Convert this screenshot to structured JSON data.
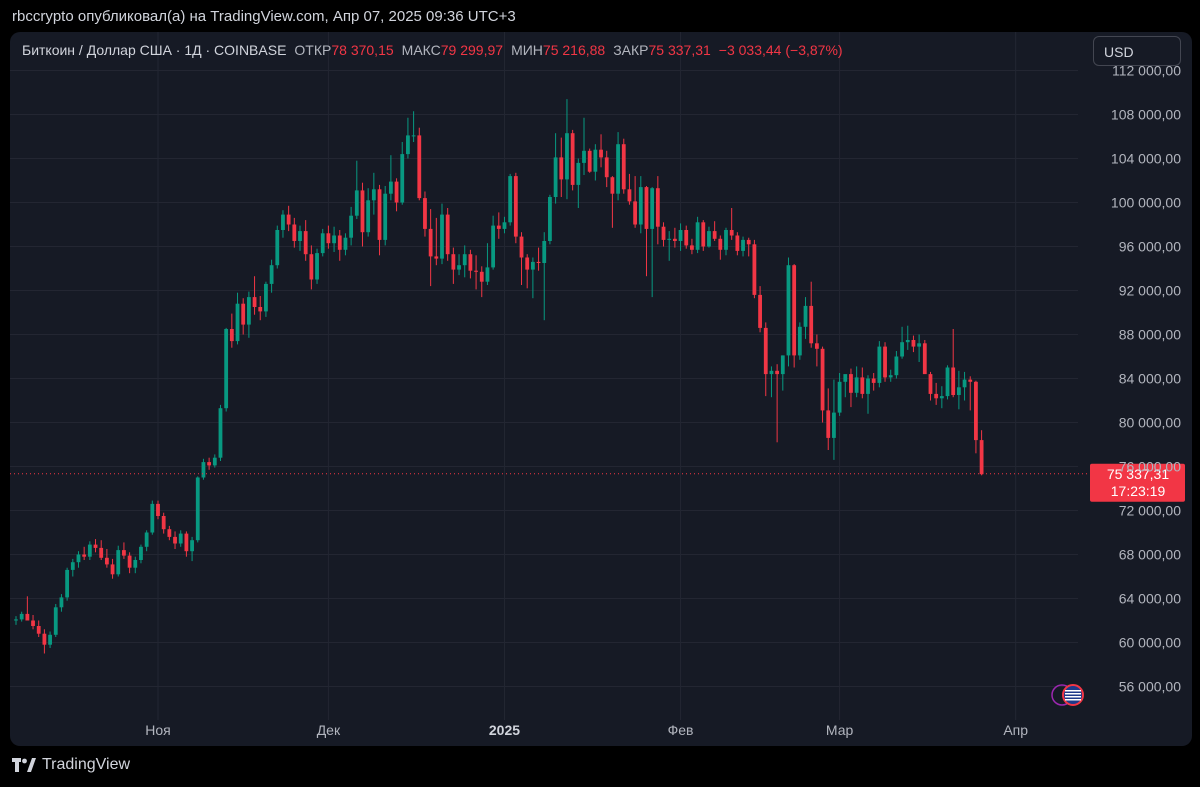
{
  "caption": "rbccrypto опубликовал(а) на TradingView.com, Апр 07, 2025 09:36 UTC+3",
  "legend": {
    "symbol": "Биткоин / Доллар США · 1Д · COINBASE",
    "open_label": "ОТКР",
    "open": "78 370,15",
    "high_label": "МАКС",
    "high": "79 299,97",
    "low_label": "МИН",
    "low": "75 216,88",
    "close_label": "ЗАКР",
    "close": "75 337,31",
    "change": "−3 033,44 (−3,87%)"
  },
  "currency_button": "USD",
  "footer_brand": "TradingView",
  "colors": {
    "up": "#089981",
    "down": "#f23645",
    "background": "#161a25",
    "grid": "#232632",
    "text": "#b2b5be"
  },
  "chart_data": {
    "type": "candlestick",
    "title": "",
    "symbol": "BTC/USD",
    "interval": "1D",
    "y_axis_ticks": [
      {
        "value": 56000,
        "label": "56 000,00"
      },
      {
        "value": 60000,
        "label": "60 000,00"
      },
      {
        "value": 64000,
        "label": "64 000,00"
      },
      {
        "value": 68000,
        "label": "68 000,00"
      },
      {
        "value": 72000,
        "label": "72 000,00"
      },
      {
        "value": 76000,
        "label": "76 000,00"
      },
      {
        "value": 80000,
        "label": "80 000,00"
      },
      {
        "value": 84000,
        "label": "84 000,00"
      },
      {
        "value": 88000,
        "label": "88 000,00"
      },
      {
        "value": 92000,
        "label": "92 000,00"
      },
      {
        "value": 96000,
        "label": "96 000,00"
      },
      {
        "value": 100000,
        "label": "100 000,00"
      },
      {
        "value": 104000,
        "label": "104 000,00"
      },
      {
        "value": 108000,
        "label": "108 000,00"
      },
      {
        "value": 112000,
        "label": "112 000,00"
      }
    ],
    "x_axis_ticks": [
      {
        "index": 25,
        "label": "Ноя",
        "bold": false
      },
      {
        "index": 55,
        "label": "Дек",
        "bold": false
      },
      {
        "index": 86,
        "label": "2025",
        "bold": true
      },
      {
        "index": 117,
        "label": "Фев",
        "bold": false
      },
      {
        "index": 145,
        "label": "Мар",
        "bold": false
      },
      {
        "index": 176,
        "label": "Апр",
        "bold": false
      }
    ],
    "last_price": {
      "value": 75337.31,
      "label": "75 337,31",
      "countdown": "17:23:19"
    },
    "ohlc": [
      [
        62000,
        62400,
        61600,
        62100
      ],
      [
        62100,
        62800,
        61900,
        62600
      ],
      [
        62600,
        64200,
        62300,
        62000
      ],
      [
        62000,
        62500,
        61200,
        61500
      ],
      [
        61500,
        62000,
        60500,
        60800
      ],
      [
        60800,
        61200,
        59000,
        59800
      ],
      [
        59800,
        61000,
        59500,
        60700
      ],
      [
        60700,
        63500,
        60500,
        63200
      ],
      [
        63200,
        64400,
        62800,
        64100
      ],
      [
        64100,
        66800,
        63800,
        66600
      ],
      [
        66600,
        67600,
        66000,
        67300
      ],
      [
        67300,
        68300,
        66800,
        68000
      ],
      [
        68000,
        68700,
        67500,
        67800
      ],
      [
        67800,
        69200,
        67500,
        68900
      ],
      [
        68900,
        69400,
        68200,
        68600
      ],
      [
        68600,
        69300,
        67500,
        67700
      ],
      [
        67700,
        68500,
        66800,
        67100
      ],
      [
        67100,
        67600,
        65800,
        66200
      ],
      [
        66200,
        68800,
        66000,
        68400
      ],
      [
        68400,
        69100,
        67600,
        67900
      ],
      [
        67900,
        68200,
        66300,
        66800
      ],
      [
        66800,
        67800,
        66300,
        67500
      ],
      [
        67500,
        68900,
        67200,
        68700
      ],
      [
        68700,
        70200,
        68300,
        70000
      ],
      [
        70000,
        72900,
        69800,
        72600
      ],
      [
        72600,
        72900,
        71200,
        71500
      ],
      [
        71500,
        71800,
        69900,
        70300
      ],
      [
        70300,
        70600,
        69300,
        69600
      ],
      [
        69600,
        70100,
        68500,
        69000
      ],
      [
        69000,
        70200,
        68700,
        69900
      ],
      [
        69900,
        70100,
        67800,
        68300
      ],
      [
        68300,
        69600,
        67400,
        69300
      ],
      [
        69300,
        75100,
        69100,
        75000
      ],
      [
        75000,
        76700,
        74800,
        76400
      ],
      [
        76400,
        76800,
        75700,
        76100
      ],
      [
        76100,
        77100,
        75900,
        76800
      ],
      [
        76800,
        81600,
        76500,
        81300
      ],
      [
        81300,
        88600,
        81000,
        88500
      ],
      [
        88500,
        89900,
        86800,
        87400
      ],
      [
        87400,
        91800,
        87100,
        90800
      ],
      [
        90800,
        91300,
        88000,
        88900
      ],
      [
        88900,
        91900,
        87700,
        91400
      ],
      [
        91400,
        93300,
        89800,
        90500
      ],
      [
        90500,
        91500,
        89300,
        90100
      ],
      [
        90100,
        92800,
        89600,
        92600
      ],
      [
        92600,
        94800,
        91800,
        94300
      ],
      [
        94300,
        97900,
        94000,
        97500
      ],
      [
        97500,
        99300,
        96800,
        98900
      ],
      [
        98900,
        99700,
        97400,
        98000
      ],
      [
        98000,
        98600,
        95900,
        96500
      ],
      [
        96500,
        97900,
        95600,
        97400
      ],
      [
        97400,
        98400,
        94700,
        95300
      ],
      [
        95300,
        96100,
        92100,
        93000
      ],
      [
        93000,
        95800,
        92600,
        95400
      ],
      [
        95400,
        97600,
        95100,
        97200
      ],
      [
        97200,
        97900,
        95800,
        96300
      ],
      [
        96300,
        97800,
        95500,
        97000
      ],
      [
        97000,
        97500,
        94700,
        95700
      ],
      [
        95700,
        97200,
        95200,
        96800
      ],
      [
        96800,
        99600,
        96100,
        98800
      ],
      [
        98800,
        103800,
        98500,
        101100
      ],
      [
        101100,
        101800,
        96000,
        97300
      ],
      [
        97300,
        101300,
        96900,
        100200
      ],
      [
        100200,
        102700,
        98900,
        101200
      ],
      [
        101200,
        101600,
        95200,
        96600
      ],
      [
        96600,
        101500,
        96100,
        100800
      ],
      [
        100800,
        104300,
        100200,
        101900
      ],
      [
        101900,
        102200,
        99200,
        100000
      ],
      [
        100000,
        105500,
        99800,
        104400
      ],
      [
        104400,
        107700,
        104000,
        106100
      ],
      [
        106100,
        108300,
        105500,
        106100
      ],
      [
        106100,
        106800,
        100200,
        100400
      ],
      [
        100400,
        101000,
        96900,
        97600
      ],
      [
        97600,
        99400,
        92400,
        95100
      ],
      [
        95100,
        98600,
        94300,
        94900
      ],
      [
        94900,
        99900,
        94400,
        98900
      ],
      [
        98900,
        99500,
        94700,
        95300
      ],
      [
        95300,
        95900,
        92600,
        93900
      ],
      [
        93900,
        95300,
        93400,
        94300
      ],
      [
        94300,
        96100,
        93200,
        95300
      ],
      [
        95300,
        95700,
        93100,
        93800
      ],
      [
        93800,
        95200,
        92100,
        93700
      ],
      [
        93700,
        94200,
        91400,
        92800
      ],
      [
        92800,
        96300,
        92500,
        94100
      ],
      [
        94100,
        98800,
        93900,
        97900
      ],
      [
        97900,
        99100,
        96700,
        97600
      ],
      [
        97600,
        98700,
        97200,
        98200
      ],
      [
        98200,
        102600,
        97900,
        102400
      ],
      [
        102400,
        102700,
        96300,
        96900
      ],
      [
        96900,
        97300,
        92500,
        95000
      ],
      [
        95000,
        95300,
        92200,
        93900
      ],
      [
        93900,
        95000,
        91300,
        94600
      ],
      [
        94600,
        95900,
        93800,
        94500
      ],
      [
        94500,
        97300,
        89300,
        96500
      ],
      [
        96500,
        100700,
        96200,
        100500
      ],
      [
        100500,
        106300,
        99900,
        104100
      ],
      [
        104100,
        105900,
        100500,
        102100
      ],
      [
        102100,
        109400,
        100300,
        106300
      ],
      [
        106300,
        106600,
        101100,
        101600
      ],
      [
        101600,
        104000,
        99500,
        103600
      ],
      [
        103600,
        107700,
        102500,
        104700
      ],
      [
        104700,
        104900,
        102700,
        102800
      ],
      [
        102800,
        105300,
        102000,
        104800
      ],
      [
        104800,
        106200,
        103200,
        104100
      ],
      [
        104100,
        104700,
        101400,
        102300
      ],
      [
        102300,
        102400,
        97700,
        100800
      ],
      [
        100800,
        106400,
        100200,
        105300
      ],
      [
        105300,
        105800,
        100800,
        101200
      ],
      [
        101200,
        102600,
        99800,
        100100
      ],
      [
        100100,
        102400,
        97700,
        98000
      ],
      [
        98000,
        102400,
        97200,
        101400
      ],
      [
        101400,
        101500,
        93300,
        97600
      ],
      [
        97600,
        101400,
        91400,
        101300
      ],
      [
        101300,
        102400,
        96200,
        97800
      ],
      [
        97800,
        98200,
        96000,
        96600
      ],
      [
        96600,
        97400,
        94700,
        96700
      ],
      [
        96700,
        97700,
        95900,
        96500
      ],
      [
        96500,
        98100,
        95600,
        97500
      ],
      [
        97500,
        97900,
        95800,
        96100
      ],
      [
        96100,
        96700,
        95300,
        95700
      ],
      [
        95700,
        98700,
        95400,
        98200
      ],
      [
        98200,
        98400,
        95600,
        96000
      ],
      [
        96000,
        97800,
        95900,
        97400
      ],
      [
        97400,
        98300,
        96500,
        96700
      ],
      [
        96700,
        97000,
        94800,
        95700
      ],
      [
        95700,
        97700,
        95200,
        97500
      ],
      [
        97500,
        99500,
        96600,
        97000
      ],
      [
        97000,
        97300,
        95200,
        95600
      ],
      [
        95600,
        96900,
        95100,
        96600
      ],
      [
        96600,
        96800,
        95100,
        96200
      ],
      [
        96200,
        96600,
        91300,
        91600
      ],
      [
        91600,
        92400,
        88200,
        88600
      ],
      [
        88600,
        89100,
        82400,
        84400
      ],
      [
        84400,
        85100,
        82300,
        84700
      ],
      [
        84700,
        85300,
        78200,
        84400
      ],
      [
        84400,
        86100,
        82900,
        86100
      ],
      [
        86100,
        95000,
        85100,
        94300
      ],
      [
        94300,
        94400,
        85000,
        86100
      ],
      [
        86100,
        89100,
        85700,
        88700
      ],
      [
        88700,
        91400,
        87600,
        90600
      ],
      [
        90600,
        92800,
        86800,
        87200
      ],
      [
        87200,
        88000,
        85100,
        86700
      ],
      [
        86700,
        86900,
        80000,
        81100
      ],
      [
        81100,
        83100,
        77500,
        78600
      ],
      [
        78600,
        83900,
        76600,
        80900
      ],
      [
        80900,
        84500,
        80600,
        83700
      ],
      [
        83700,
        84300,
        82300,
        84400
      ],
      [
        84400,
        84900,
        81400,
        82700
      ],
      [
        82700,
        85100,
        82300,
        84100
      ],
      [
        84100,
        85000,
        82200,
        82600
      ],
      [
        82600,
        84300,
        80800,
        84000
      ],
      [
        84000,
        84500,
        82900,
        83600
      ],
      [
        83600,
        87400,
        83200,
        86900
      ],
      [
        86900,
        87300,
        83700,
        84100
      ],
      [
        84100,
        84800,
        83700,
        84300
      ],
      [
        84300,
        86500,
        84000,
        86000
      ],
      [
        86000,
        88700,
        85800,
        87300
      ],
      [
        87300,
        88800,
        86600,
        87500
      ],
      [
        87500,
        87900,
        86400,
        86900
      ],
      [
        86900,
        88000,
        85500,
        87200
      ],
      [
        87200,
        87500,
        84500,
        84400
      ],
      [
        84400,
        84600,
        82000,
        82600
      ],
      [
        82600,
        83600,
        81600,
        82200
      ],
      [
        82200,
        83300,
        81300,
        82400
      ],
      [
        82400,
        85200,
        82100,
        85000
      ],
      [
        85000,
        88500,
        82300,
        82500
      ],
      [
        82500,
        84700,
        81200,
        83200
      ],
      [
        83200,
        84600,
        82000,
        83900
      ],
      [
        83900,
        84200,
        81100,
        83700
      ],
      [
        83700,
        83800,
        77200,
        78400
      ],
      [
        78400,
        79300,
        75200,
        75300
      ]
    ]
  }
}
